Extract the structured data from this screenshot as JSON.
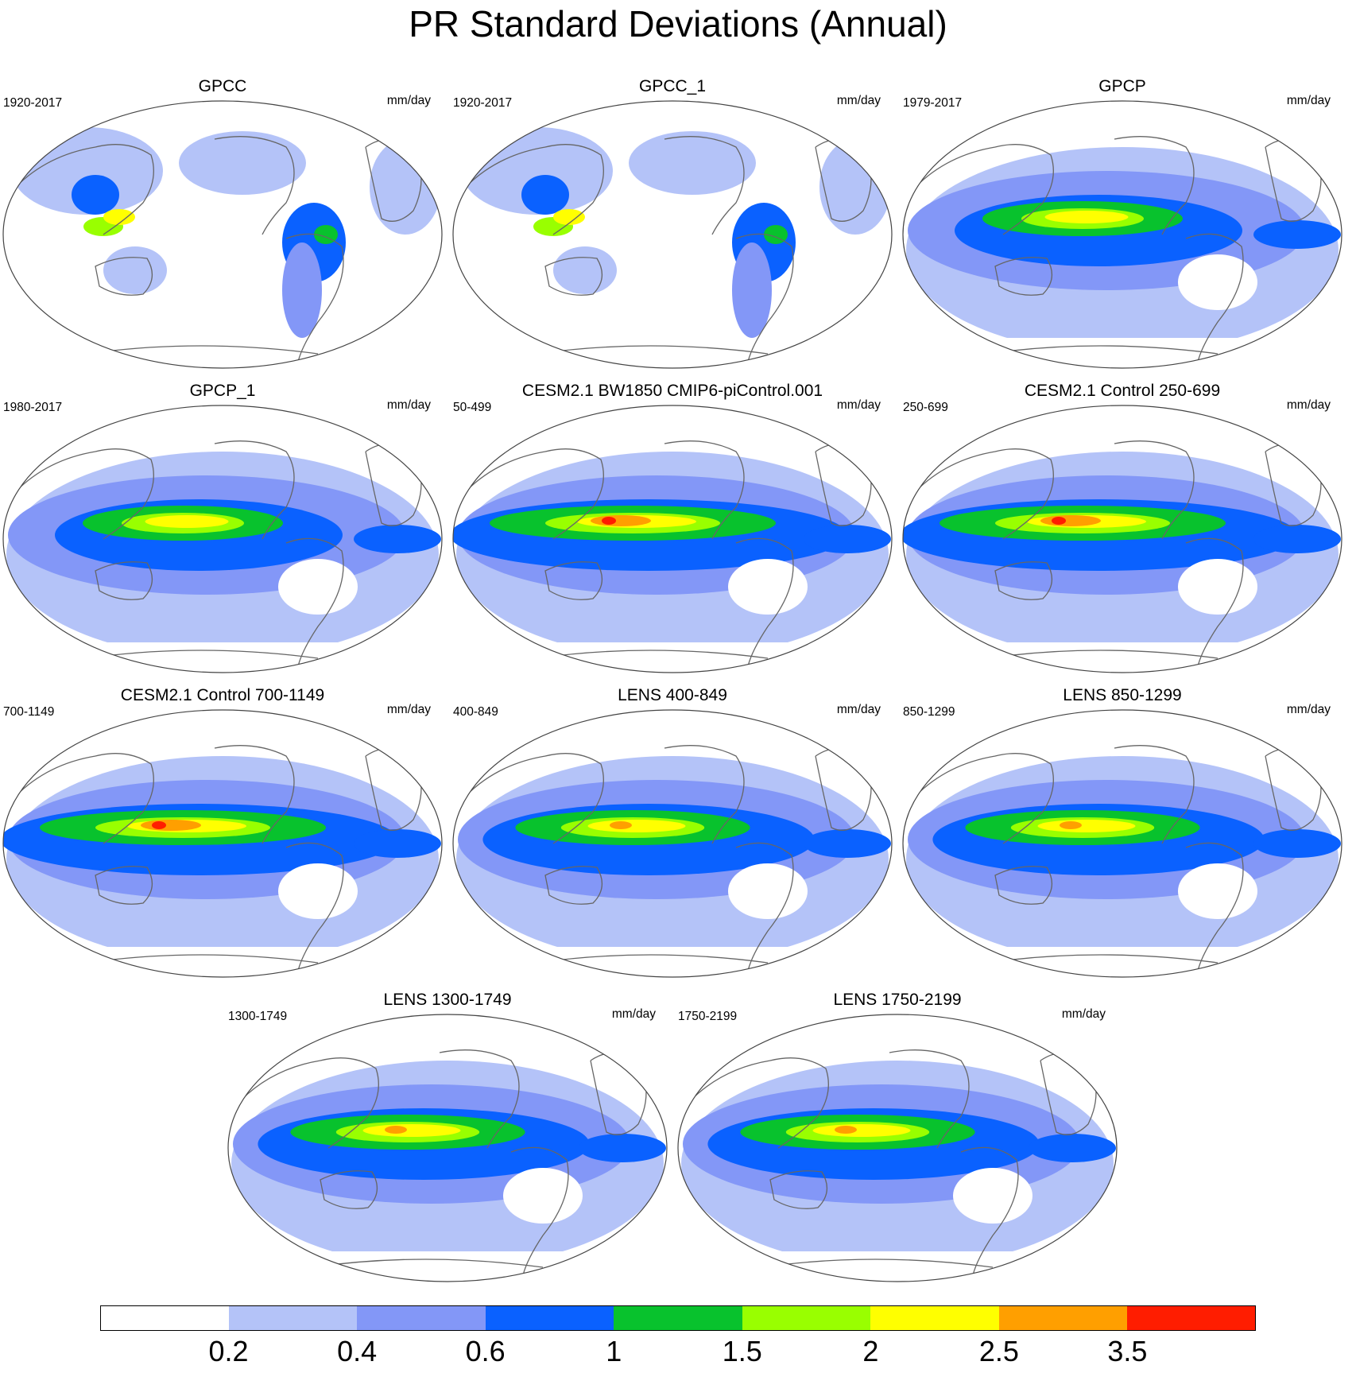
{
  "title": "PR Standard Deviations (Annual)",
  "panels": [
    {
      "title": "GPCC",
      "left_label": "1920-2017",
      "right_label": "mm/day",
      "kind": "obs_land"
    },
    {
      "title": "GPCC_1",
      "left_label": "1920-2017",
      "right_label": "mm/day",
      "kind": "obs_land"
    },
    {
      "title": "GPCP",
      "left_label": "1979-2017",
      "right_label": "mm/day",
      "kind": "obs_global"
    },
    {
      "title": "GPCP_1",
      "left_label": "1980-2017",
      "right_label": "mm/day",
      "kind": "obs_global"
    },
    {
      "title": "CESM2.1 BW1850 CMIP6-piControl.001",
      "left_label": "50-499",
      "right_label": "mm/day",
      "kind": "model_strong"
    },
    {
      "title": "CESM2.1 Control 250-699",
      "left_label": "250-699",
      "right_label": "mm/day",
      "kind": "model_strong"
    },
    {
      "title": "CESM2.1 Control 700-1149",
      "left_label": "700-1149",
      "right_label": "mm/day",
      "kind": "model_strong"
    },
    {
      "title": "LENS 400-849",
      "left_label": "400-849",
      "right_label": "mm/day",
      "kind": "model_lens"
    },
    {
      "title": "LENS 850-1299",
      "left_label": "850-1299",
      "right_label": "mm/day",
      "kind": "model_lens"
    },
    {
      "title": "LENS 1300-1749",
      "left_label": "1300-1749",
      "right_label": "mm/day",
      "kind": "model_lens"
    },
    {
      "title": "LENS 1750-2199",
      "left_label": "1750-2199",
      "right_label": "mm/day",
      "kind": "model_lens"
    }
  ],
  "colorbar": {
    "labels": [
      "0.2",
      "0.4",
      "0.6",
      "1",
      "1.5",
      "2",
      "2.5",
      "3.5"
    ],
    "colors": [
      "#ffffff",
      "#b4c3f8",
      "#8397f7",
      "#0a61ff",
      "#08c22d",
      "#99ff00",
      "#ffff00",
      "#ff9f00",
      "#ff1d00"
    ]
  }
}
